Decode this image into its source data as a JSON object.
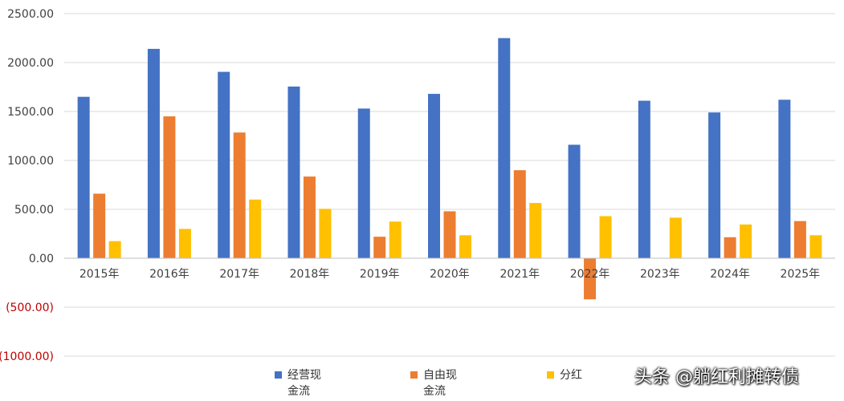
{
  "chart_data": {
    "type": "bar",
    "categories": [
      "2015年",
      "2016年",
      "2017年",
      "2018年",
      "2019年",
      "2020年",
      "2021年",
      "2022年",
      "2023年",
      "2024年",
      "2025年"
    ],
    "series": [
      {
        "name": "经营现金流",
        "color": "#4472C4",
        "values": [
          1650,
          2140,
          1905,
          1755,
          1530,
          1680,
          2250,
          1160,
          1610,
          1490,
          1620
        ]
      },
      {
        "name": "自由现金流",
        "color": "#ED7D31",
        "values": [
          660,
          1450,
          1285,
          835,
          220,
          480,
          900,
          -420,
          0,
          215,
          380
        ]
      },
      {
        "name": "分红",
        "color": "#FFC000",
        "values": [
          175,
          300,
          600,
          505,
          375,
          235,
          565,
          430,
          415,
          345,
          235
        ]
      }
    ],
    "yticks": [
      "2500.00",
      "2000.00",
      "1500.00",
      "1000.00",
      "500.00",
      "0.00",
      "(500.00)",
      "(1000.00)"
    ],
    "ytick_values": [
      2500,
      2000,
      1500,
      1000,
      500,
      0,
      -500,
      -1000
    ],
    "negative_tick_color": "#C00000",
    "ylim": [
      -1000,
      2500
    ],
    "grid": true,
    "legend": "bottom"
  },
  "legend": {
    "item1_line1": "经营现",
    "item1_line2": "金流",
    "item2_line1": "自由现",
    "item2_line2": "金流",
    "item3_line1": "分红"
  },
  "watermark": "头条 @躺红利摊转债"
}
